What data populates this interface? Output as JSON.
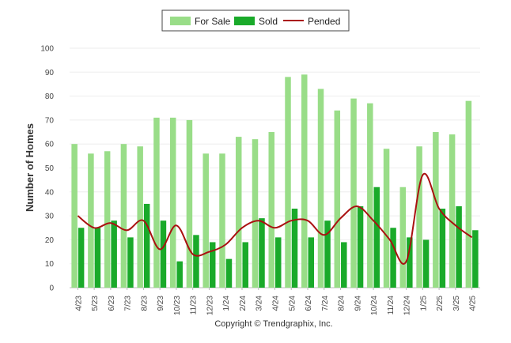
{
  "chart_data": {
    "type": "bar",
    "ylabel": "Number of Homes",
    "xlabel": "",
    "ylim": [
      0,
      100
    ],
    "yticks": [
      0,
      10,
      20,
      30,
      40,
      50,
      60,
      70,
      80,
      90,
      100
    ],
    "grid": true,
    "legend_position": "top-center",
    "categories": [
      "4/23",
      "5/23",
      "6/23",
      "7/23",
      "8/23",
      "9/23",
      "10/23",
      "11/23",
      "12/23",
      "1/24",
      "2/24",
      "3/24",
      "4/24",
      "5/24",
      "6/24",
      "7/24",
      "8/24",
      "9/24",
      "10/24",
      "11/24",
      "12/24",
      "1/25",
      "2/25",
      "3/25",
      "4/25"
    ],
    "series": [
      {
        "name": "For Sale",
        "kind": "bar",
        "color": "#99dd88",
        "values": [
          60,
          56,
          57,
          60,
          59,
          71,
          71,
          70,
          56,
          56,
          63,
          62,
          65,
          88,
          89,
          83,
          74,
          79,
          77,
          58,
          42,
          59,
          65,
          64,
          78
        ]
      },
      {
        "name": "Sold",
        "kind": "bar",
        "color": "#1aaa2a",
        "values": [
          25,
          25,
          28,
          21,
          35,
          28,
          11,
          22,
          19,
          12,
          19,
          29,
          21,
          33,
          21,
          28,
          19,
          34,
          42,
          25,
          21,
          20,
          33,
          34,
          24
        ]
      },
      {
        "name": "Pended",
        "kind": "line",
        "color": "#aa1111",
        "values": [
          30,
          25,
          27,
          24,
          28,
          16,
          26,
          14,
          15,
          18,
          25,
          28,
          25,
          28,
          28,
          22,
          29,
          34,
          28,
          20,
          11,
          47,
          33,
          26,
          21
        ]
      }
    ],
    "footer": "Copyright © Trendgraphix, Inc."
  }
}
